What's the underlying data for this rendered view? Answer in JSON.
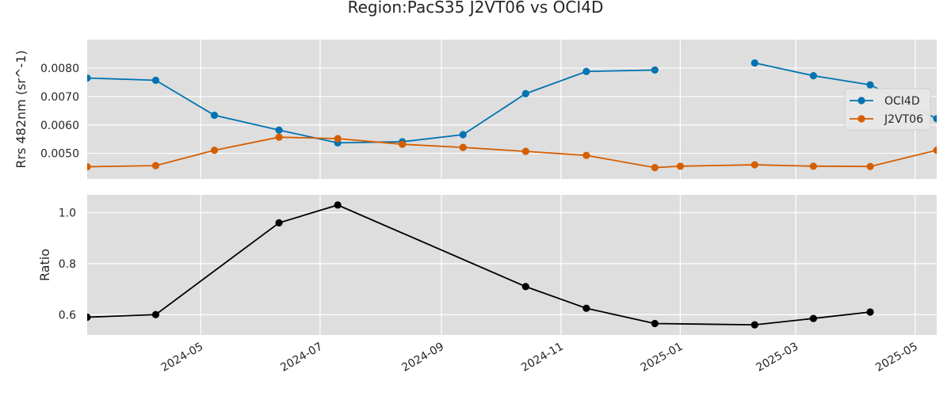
{
  "chart_data": [
    {
      "type": "line",
      "title": "Region:PacS35 J2VT06 vs OCI4D",
      "ylabel": "Rrs 482nm (sr^-1)",
      "xlabel": "",
      "xlim": [
        "2024-03-04",
        "2025-05-12"
      ],
      "ylim": [
        0.0041,
        0.009
      ],
      "yticks": [
        0.005,
        0.006,
        0.007,
        0.008
      ],
      "ytick_labels": [
        "0.0050",
        "0.0060",
        "0.0070",
        "0.0080"
      ],
      "grid": true,
      "legend_position": "right",
      "series": [
        {
          "name": "OCI4D",
          "color": "#0173b2",
          "points": [
            [
              "2024-03-04",
              0.00765
            ],
            [
              "2024-04-08",
              0.00757
            ],
            [
              "2024-05-08",
              0.00634
            ],
            [
              "2024-06-10",
              0.00582
            ],
            [
              "2024-07-10",
              0.00537
            ],
            [
              "2024-08-12",
              0.00541
            ],
            [
              "2024-09-12",
              0.00566
            ],
            [
              "2024-10-14",
              0.0071
            ],
            [
              "2024-11-14",
              0.00788
            ],
            [
              "2024-12-19",
              0.00793
            ],
            null,
            [
              "2025-02-08",
              0.00818
            ],
            [
              "2025-03-10",
              0.00773
            ],
            [
              "2025-04-08",
              0.00741
            ],
            [
              "2025-05-12",
              0.00622
            ]
          ]
        },
        {
          "name": "J2VT06",
          "color": "#d55e00",
          "points": [
            [
              "2024-03-04",
              0.00453
            ],
            [
              "2024-04-08",
              0.00457
            ],
            [
              "2024-05-08",
              0.00511
            ],
            [
              "2024-06-10",
              0.00557
            ],
            [
              "2024-07-10",
              0.00552
            ],
            [
              "2024-08-12",
              0.00532
            ],
            [
              "2024-09-12",
              0.00521
            ],
            [
              "2024-10-14",
              0.00507
            ],
            [
              "2024-11-14",
              0.00493
            ],
            [
              "2024-12-19",
              0.0045
            ],
            [
              "2025-01-01",
              0.00455
            ],
            [
              "2025-02-08",
              0.0046
            ],
            [
              "2025-03-10",
              0.00455
            ],
            [
              "2025-04-08",
              0.00454
            ],
            [
              "2025-05-12",
              0.00511
            ]
          ]
        }
      ]
    },
    {
      "type": "line",
      "title": "",
      "ylabel": "Ratio",
      "xlabel": "",
      "xlim": [
        "2024-03-04",
        "2025-05-12"
      ],
      "ylim": [
        0.52,
        1.07
      ],
      "yticks": [
        0.6,
        0.8,
        1.0
      ],
      "ytick_labels": [
        "0.6",
        "0.8",
        "1.0"
      ],
      "xticks": [
        "2024-05-01",
        "2024-07-01",
        "2024-09-01",
        "2024-11-01",
        "2025-01-01",
        "2025-03-01",
        "2025-05-01"
      ],
      "xtick_labels": [
        "2024-05",
        "2024-07",
        "2024-09",
        "2024-11",
        "2025-01",
        "2025-03",
        "2025-05"
      ],
      "grid": true,
      "series": [
        {
          "color": "#000000",
          "points": [
            [
              "2024-03-04",
              0.59
            ],
            [
              "2024-04-08",
              0.6
            ],
            [
              "2024-06-10",
              0.96
            ],
            [
              "2024-07-10",
              1.03
            ],
            [
              "2024-10-14",
              0.71
            ],
            [
              "2024-11-14",
              0.625
            ],
            [
              "2024-12-19",
              0.565
            ],
            [
              "2025-02-08",
              0.56
            ],
            [
              "2025-03-10",
              0.585
            ],
            [
              "2025-04-08",
              0.61
            ]
          ]
        }
      ]
    }
  ]
}
